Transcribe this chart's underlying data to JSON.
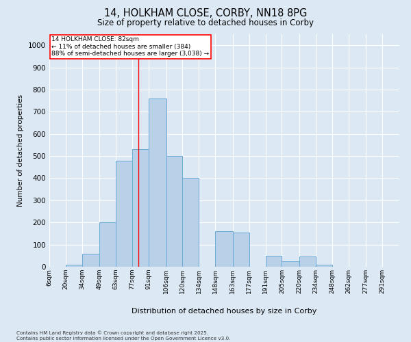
{
  "title_line1": "14, HOLKHAM CLOSE, CORBY, NN18 8PG",
  "title_line2": "Size of property relative to detached houses in Corby",
  "xlabel": "Distribution of detached houses by size in Corby",
  "ylabel": "Number of detached properties",
  "bar_labels": [
    "6sqm",
    "20sqm",
    "34sqm",
    "49sqm",
    "63sqm",
    "77sqm",
    "91sqm",
    "106sqm",
    "120sqm",
    "134sqm",
    "148sqm",
    "163sqm",
    "177sqm",
    "191sqm",
    "205sqm",
    "220sqm",
    "234sqm",
    "248sqm",
    "262sqm",
    "277sqm",
    "291sqm"
  ],
  "bar_values": [
    0,
    10,
    60,
    200,
    480,
    530,
    760,
    500,
    400,
    0,
    160,
    155,
    0,
    50,
    25,
    45,
    10,
    0,
    0,
    0,
    0
  ],
  "bar_color": "#b8d0e8",
  "bar_edge_color": "#6aaad4",
  "background_color": "#dce9f5",
  "grid_color": "#ffffff",
  "property_line_x": 82,
  "bin_edges": [
    6,
    20,
    34,
    49,
    63,
    77,
    91,
    106,
    120,
    134,
    148,
    163,
    177,
    191,
    205,
    220,
    234,
    248,
    262,
    277,
    291,
    305
  ],
  "annotation_text_line1": "14 HOLKHAM CLOSE: 82sqm",
  "annotation_text_line2": "← 11% of detached houses are smaller (384)",
  "annotation_text_line3": "88% of semi-detached houses are larger (3,038) →",
  "ylim": [
    0,
    1050
  ],
  "yticks": [
    0,
    100,
    200,
    300,
    400,
    500,
    600,
    700,
    800,
    900,
    1000
  ],
  "footer_line1": "Contains HM Land Registry data © Crown copyright and database right 2025.",
  "footer_line2": "Contains public sector information licensed under the Open Government Licence v3.0."
}
